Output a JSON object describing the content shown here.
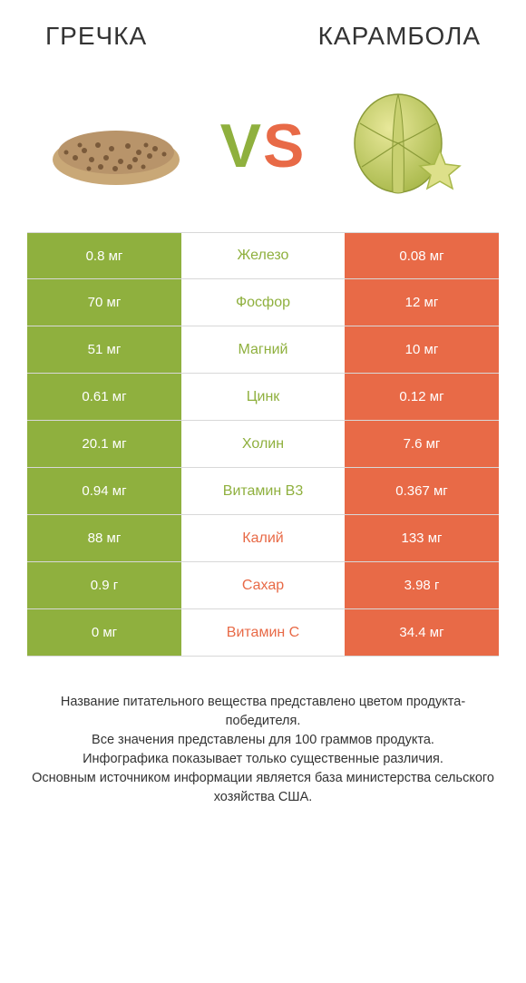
{
  "colors": {
    "green": "#8fb03e",
    "orange": "#e86a47",
    "white": "#ffffff",
    "text": "#333333"
  },
  "left": {
    "title": "ГРЕЧКА"
  },
  "right": {
    "title": "КАРАМБОЛА"
  },
  "vs": {
    "v": "V",
    "s": "S"
  },
  "rows": [
    {
      "name": "Железо",
      "left": "0.8 мг",
      "right": "0.08 мг",
      "winner": "left"
    },
    {
      "name": "Фосфор",
      "left": "70 мг",
      "right": "12 мг",
      "winner": "left"
    },
    {
      "name": "Магний",
      "left": "51 мг",
      "right": "10 мг",
      "winner": "left"
    },
    {
      "name": "Цинк",
      "left": "0.61 мг",
      "right": "0.12 мг",
      "winner": "left"
    },
    {
      "name": "Холин",
      "left": "20.1 мг",
      "right": "7.6 мг",
      "winner": "left"
    },
    {
      "name": "Витамин B3",
      "left": "0.94 мг",
      "right": "0.367 мг",
      "winner": "left"
    },
    {
      "name": "Калий",
      "left": "88 мг",
      "right": "133 мг",
      "winner": "right"
    },
    {
      "name": "Сахар",
      "left": "0.9 г",
      "right": "3.98 г",
      "winner": "right"
    },
    {
      "name": "Витамин C",
      "left": "0 мг",
      "right": "34.4 мг",
      "winner": "right"
    }
  ],
  "footer": {
    "l1": "Название питательного вещества представлено цветом продукта-победителя.",
    "l2": "Все значения представлены для 100 граммов продукта.",
    "l3": "Инфографика показывает только существенные различия.",
    "l4": "Основным источником информации является база министерства сельского хозяйства США."
  }
}
